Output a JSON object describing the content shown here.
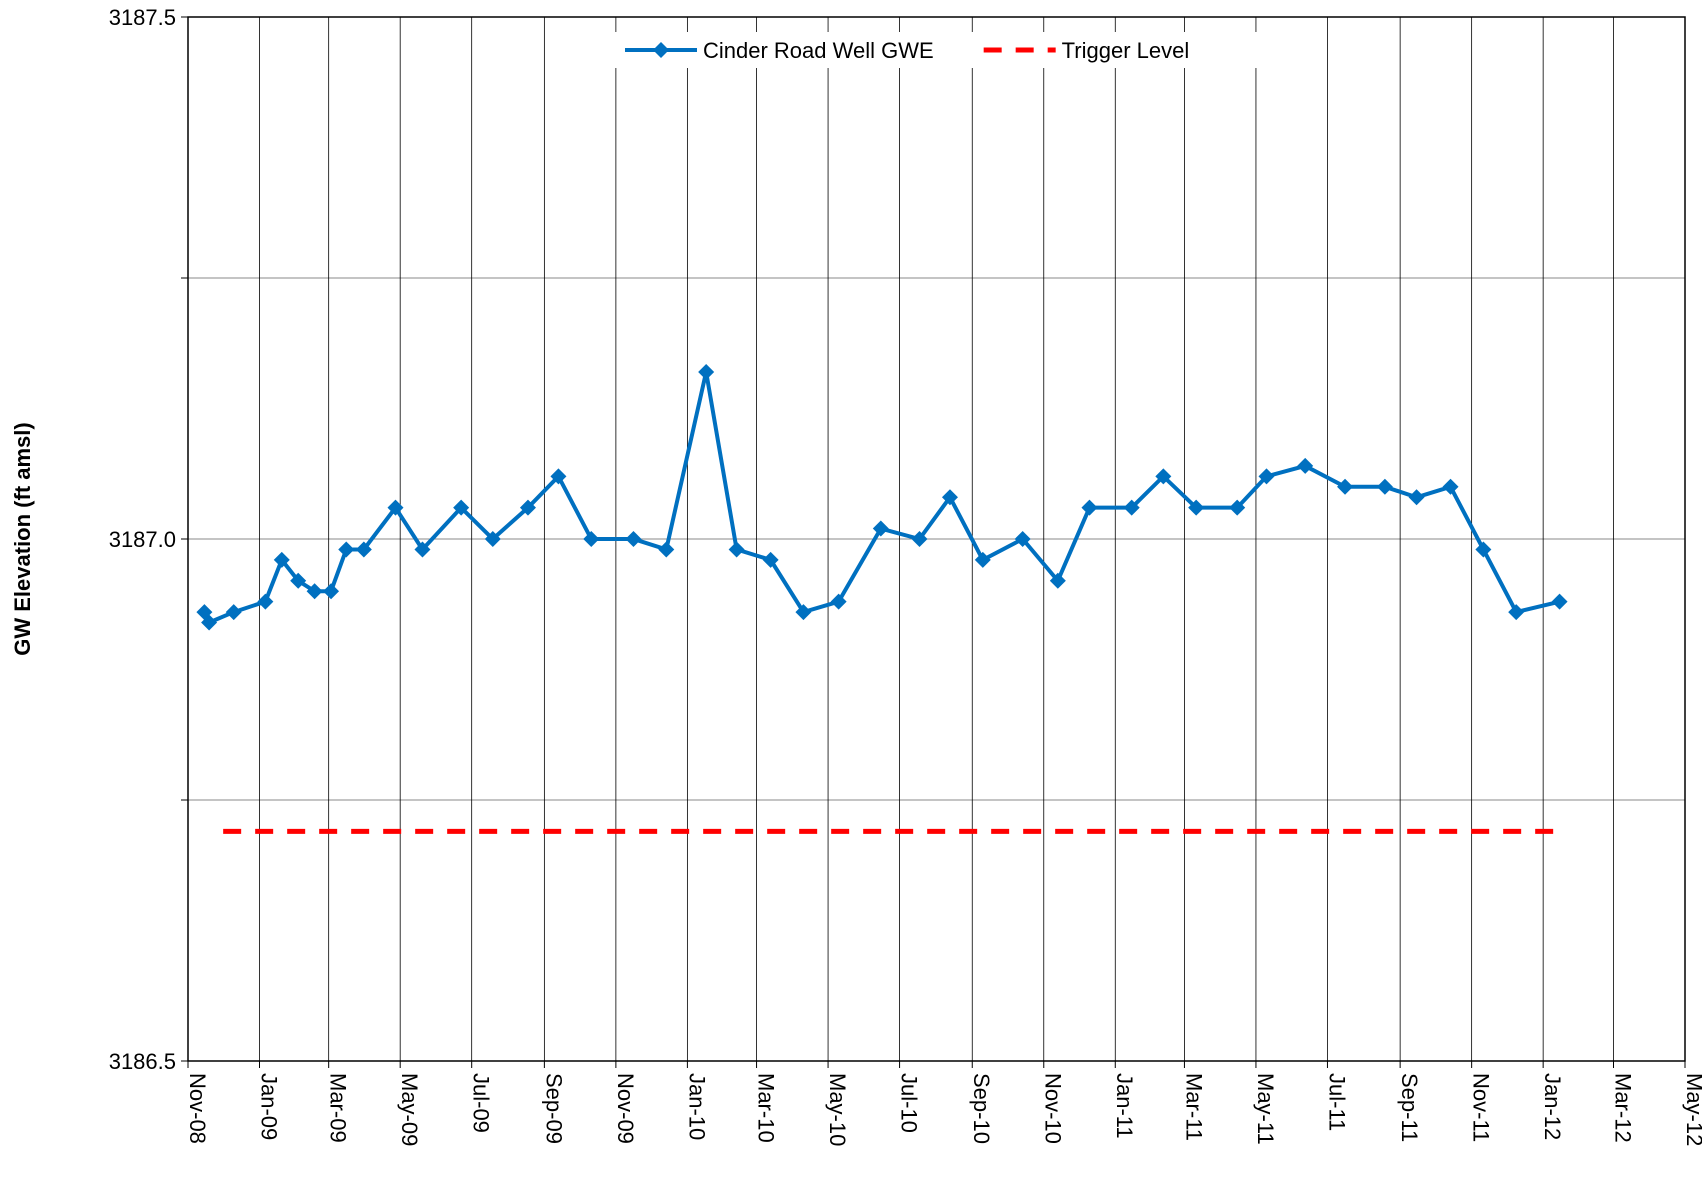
{
  "chart_data": {
    "type": "line",
    "y_label": "GW Elevation (ft amsl)",
    "ylim": [
      3186.5,
      3187.5
    ],
    "yticks": [
      3186.5,
      {
        "value": 3186.75,
        "label": null
      },
      {
        "value": 3187,
        "label": "3187.0"
      },
      {
        "value": 3187.25,
        "label": null
      },
      3187.5
    ],
    "xlim": [
      "2008-11-01",
      "2012-05-01"
    ],
    "xticks": [
      {
        "value": "2008-11-01",
        "label": "Nov-08"
      },
      {
        "value": "2009-01-01",
        "label": "Jan-09"
      },
      {
        "value": "2009-03-01",
        "label": "Mar-09"
      },
      {
        "value": "2009-05-01",
        "label": "May-09"
      },
      {
        "value": "2009-07-01",
        "label": "Jul-09"
      },
      {
        "value": "2009-09-01",
        "label": "Sep-09"
      },
      {
        "value": "2009-11-01",
        "label": "Nov-09"
      },
      {
        "value": "2010-01-01",
        "label": "Jan-10"
      },
      {
        "value": "2010-03-01",
        "label": "Mar-10"
      },
      {
        "value": "2010-05-01",
        "label": "May-10"
      },
      {
        "value": "2010-07-01",
        "label": "Jul-10"
      },
      {
        "value": "2010-09-01",
        "label": "Sep-10"
      },
      {
        "value": "2010-11-01",
        "label": "Nov-10"
      },
      {
        "value": "2011-01-01",
        "label": "Jan-11"
      },
      {
        "value": "2011-03-01",
        "label": "Mar-11"
      },
      {
        "value": "2011-05-01",
        "label": "May-11"
      },
      {
        "value": "2011-07-01",
        "label": "Jul-11"
      },
      {
        "value": "2011-09-01",
        "label": "Sep-11"
      },
      {
        "value": "2011-11-01",
        "label": "Nov-11"
      },
      {
        "value": "2012-01-01",
        "label": "Jan-12"
      },
      {
        "value": "2012-03-01",
        "label": "Mar-12"
      },
      {
        "value": "2012-05-01",
        "label": "May-12"
      }
    ],
    "grid": true,
    "legend": "top",
    "series": [
      {
        "name": "Cinder Road Well GWE",
        "color": "#0070c0",
        "marker": "diamond",
        "dash": false,
        "x": [
          "2008-11-15",
          "2008-11-19",
          "2008-12-10",
          "2009-01-06",
          "2009-01-20",
          "2009-02-03",
          "2009-02-17",
          "2009-03-03",
          "2009-03-16",
          "2009-03-31",
          "2009-04-27",
          "2009-05-20",
          "2009-06-22",
          "2009-07-19",
          "2009-08-18",
          "2009-09-13",
          "2009-10-11",
          "2009-11-16",
          "2009-12-14",
          "2010-01-17",
          "2010-02-12",
          "2010-03-13",
          "2010-04-10",
          "2010-05-10",
          "2010-06-15",
          "2010-07-18",
          "2010-08-13",
          "2010-09-10",
          "2010-10-14",
          "2010-11-13",
          "2010-12-10",
          "2011-01-15",
          "2011-02-11",
          "2011-03-11",
          "2011-04-15",
          "2011-05-10",
          "2011-06-12",
          "2011-07-16",
          "2011-08-19",
          "2011-09-15",
          "2011-10-14",
          "2011-11-11",
          "2011-12-09",
          "2012-01-15"
        ],
        "values": [
          3186.93,
          3186.92,
          3186.93,
          3186.94,
          3186.98,
          3186.96,
          3186.95,
          3186.95,
          3186.99,
          3186.99,
          3187.03,
          3186.99,
          3187.03,
          3187.0,
          3187.03,
          3187.06,
          3187.0,
          3187.0,
          3186.99,
          3187.16,
          3186.99,
          3186.98,
          3186.93,
          3186.94,
          3187.01,
          3187.0,
          3187.04,
          3186.98,
          3187.0,
          3186.96,
          3187.03,
          3187.03,
          3187.06,
          3187.03,
          3187.03,
          3187.06,
          3187.07,
          3187.05,
          3187.05,
          3187.04,
          3187.05,
          3186.99,
          3186.93,
          3186.94
        ]
      },
      {
        "name": "Trigger Level",
        "color": "#ff0000",
        "marker": null,
        "dash": true,
        "x": [
          "2008-12-01",
          "2012-01-15"
        ],
        "values": [
          3186.72,
          3186.72
        ]
      }
    ]
  }
}
